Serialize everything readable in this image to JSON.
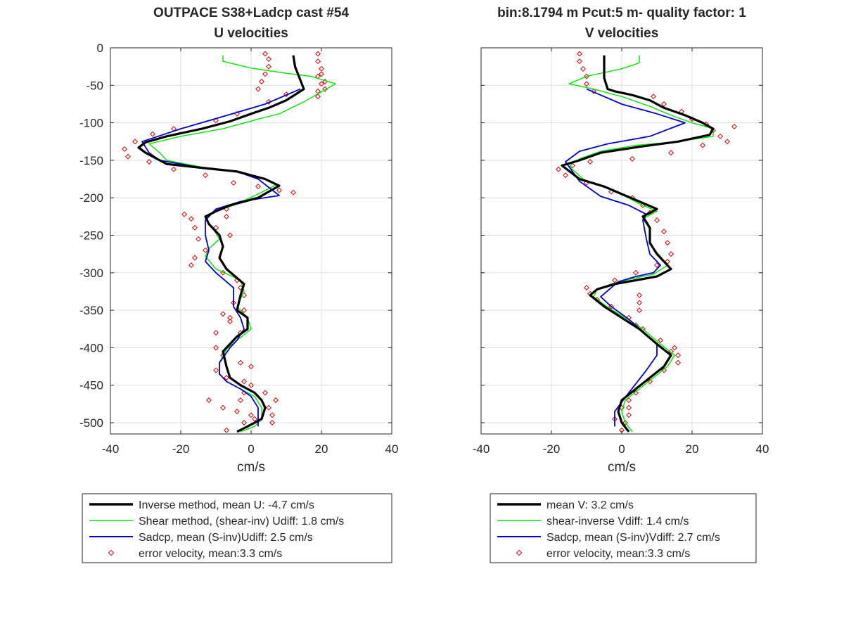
{
  "figure": {
    "panels": [
      {
        "title_line1": "OUTPACE S38+Ladcp cast #54",
        "title_line2": "U velocities",
        "xlabel": "cm/s",
        "legend": [
          {
            "label": "Inverse method, mean U:  -4.7 cm/s"
          },
          {
            "label": "Shear method, (shear-inv)  Udiff:  1.8 cm/s"
          },
          {
            "label": "Sadcp, mean (S-inv)Udiff: 2.5 cm/s"
          },
          {
            "label": "error velocity, mean:3.3 cm/s"
          }
        ]
      },
      {
        "title_line1": "bin:8.1794 m  Pcut:5 m- quality factor:  1",
        "title_line2": "V velocities",
        "xlabel": "cm/s",
        "legend": [
          {
            "label": "mean V:  3.2 cm/s"
          },
          {
            "label": "shear-inverse Vdiff:  1.4 cm/s"
          },
          {
            "label": "Sadcp, mean (S-inv)Vdiff: 2.7 cm/s"
          },
          {
            "label": "error velocity, mean:3.3 cm/s"
          }
        ]
      }
    ]
  },
  "chart_data": [
    {
      "type": "line",
      "title": "OUTPACE S38+Ladcp cast #54",
      "subtitle": "U velocities",
      "xlabel": "cm/s",
      "ylabel": "",
      "xlim": [
        -40,
        40
      ],
      "ylim": [
        -515,
        0
      ],
      "xticks": [
        "-40",
        "-20",
        "0",
        "20",
        "40"
      ],
      "yticks": [
        "0",
        "-50",
        "-100",
        "-150",
        "-200",
        "-250",
        "-300",
        "-350",
        "-400",
        "-450",
        "-500"
      ],
      "grid": true,
      "legend_position": "below",
      "colors": {
        "inverse": "#000000",
        "shear": "#00e600",
        "sadcp": "#0000cc",
        "error": "#dd0000"
      },
      "series": [
        {
          "name": "Inverse method, mean U:  -4.7 cm/s",
          "style": "line",
          "color": "#000000",
          "x": [
            12,
            12.5,
            15,
            10,
            5,
            0,
            -6,
            -14,
            -24,
            -30,
            -32,
            -30,
            -26,
            -24,
            -14,
            -4,
            4,
            8,
            2,
            -6,
            -10,
            -13,
            -12,
            -9,
            -8,
            -9,
            -7,
            -2,
            -3,
            -4,
            -1,
            -1,
            -4,
            -6,
            -8,
            -7,
            -6,
            -3,
            1,
            3,
            4,
            3,
            -1,
            -4
          ],
          "y": [
            -10,
            -25,
            -55,
            -70,
            -80,
            -88,
            -98,
            -108,
            -118,
            -126,
            -133,
            -140,
            -150,
            -155,
            -160,
            -165,
            -175,
            -184,
            -200,
            -210,
            -218,
            -225,
            -235,
            -250,
            -265,
            -280,
            -295,
            -315,
            -330,
            -350,
            -360,
            -375,
            -385,
            -395,
            -405,
            -425,
            -440,
            -450,
            -460,
            -470,
            -480,
            -495,
            -505,
            -512
          ]
        },
        {
          "name": "Shear method, (shear-inv)  Udiff:  1.8 cm/s",
          "style": "line",
          "color": "#00e600",
          "x": [
            -8,
            -8,
            0,
            10,
            17,
            24,
            15,
            8,
            2,
            -8,
            -20,
            -29,
            -26,
            -24,
            -13,
            -3,
            4,
            7,
            2,
            -5,
            -11,
            -13,
            -11,
            -9,
            -12,
            -13,
            -10,
            -3,
            -2,
            -4,
            -1,
            0,
            -4,
            -7,
            -9,
            -9,
            -7,
            -3,
            1,
            3,
            3,
            1,
            -3
          ],
          "y": [
            -10,
            -18,
            -27,
            -34,
            -38,
            -48,
            -72,
            -88,
            -95,
            -108,
            -118,
            -128,
            -140,
            -150,
            -160,
            -165,
            -175,
            -183,
            -195,
            -210,
            -220,
            -228,
            -240,
            -255,
            -268,
            -278,
            -295,
            -310,
            -325,
            -345,
            -360,
            -375,
            -390,
            -402,
            -420,
            -435,
            -445,
            -455,
            -465,
            -480,
            -495,
            -505,
            -512
          ]
        },
        {
          "name": "Sadcp, mean (S-inv)Udiff: 2.5 cm/s",
          "style": "line",
          "color": "#0000cc",
          "x": [
            14,
            4,
            -9,
            -20,
            -31,
            -29,
            -26,
            -14,
            -4,
            2,
            8,
            -3,
            -10,
            -13,
            -13,
            -12,
            -13,
            -10,
            -5,
            -5,
            -3,
            -2,
            -4,
            -6,
            -9,
            -9,
            -7,
            -3,
            0,
            2,
            2
          ],
          "y": [
            -55,
            -75,
            -93,
            -108,
            -125,
            -140,
            -150,
            -160,
            -165,
            -175,
            -197,
            -205,
            -215,
            -230,
            -250,
            -270,
            -285,
            -300,
            -320,
            -345,
            -360,
            -375,
            -390,
            -400,
            -420,
            -435,
            -445,
            -455,
            -465,
            -480,
            -505
          ]
        },
        {
          "name": "error velocity, mean:3.3 cm/s",
          "style": "markers",
          "color": "#dd0000",
          "x": [
            4,
            5,
            5,
            4,
            3,
            2,
            10,
            5,
            -4,
            -10,
            -22,
            -28,
            -33,
            -36,
            -35,
            -29,
            -22,
            -13,
            -5,
            2,
            8,
            12,
            -7,
            -19,
            -17,
            -16,
            -15,
            -10,
            -7,
            -6,
            -13,
            -16,
            -17,
            -8,
            -4,
            -3,
            -2,
            -2,
            -8,
            -6,
            -10,
            -3,
            -10,
            -8,
            -3,
            0,
            -10,
            -7,
            -2,
            0,
            -2,
            -3,
            -12,
            -8,
            -4,
            0,
            1,
            -2,
            -7,
            7,
            5,
            6,
            6,
            4,
            -5,
            -6,
            19,
            19,
            20,
            19,
            20,
            19,
            19,
            21,
            21,
            20
          ],
          "y": [
            -8,
            -15,
            -25,
            -35,
            -45,
            -55,
            -62,
            -72,
            -88,
            -97,
            -108,
            -115,
            -125,
            -135,
            -145,
            -152,
            -162,
            -170,
            -180,
            -185,
            -190,
            -193,
            -215,
            -222,
            -228,
            -240,
            -255,
            -240,
            -225,
            -250,
            -270,
            -280,
            -290,
            -300,
            -310,
            -320,
            -330,
            -350,
            -355,
            -365,
            -380,
            -380,
            -400,
            -410,
            -420,
            -425,
            -430,
            -440,
            -445,
            -450,
            -460,
            -470,
            -470,
            -480,
            -485,
            -490,
            -495,
            -500,
            -510,
            -470,
            -480,
            -490,
            -500,
            -460,
            -340,
            -360,
            -8,
            -18,
            -28,
            -38,
            -48,
            -58,
            -65,
            -55,
            -45,
            -35
          ]
        }
      ]
    },
    {
      "type": "line",
      "title": "bin:8.1794 m  Pcut:5 m- quality factor:  1",
      "subtitle": "V velocities",
      "xlabel": "cm/s",
      "ylabel": "",
      "xlim": [
        -40,
        40
      ],
      "ylim": [
        -515,
        0
      ],
      "xticks": [
        "-40",
        "-20",
        "0",
        "20",
        "40"
      ],
      "yticks": [],
      "grid": true,
      "legend_position": "below",
      "colors": {
        "inverse": "#000000",
        "shear": "#00e600",
        "sadcp": "#0000cc",
        "error": "#dd0000"
      },
      "series": [
        {
          "name": "mean V:  3.2 cm/s",
          "style": "line",
          "color": "#000000",
          "x": [
            -5,
            -5,
            -5,
            -4,
            -2,
            3,
            8,
            12,
            18,
            23,
            26,
            25,
            16,
            5,
            -6,
            -12,
            -17,
            -12,
            -5,
            0,
            5,
            10,
            6,
            8,
            8,
            10,
            14,
            10,
            4,
            -2,
            -7,
            -9,
            -5,
            0,
            5,
            10,
            14,
            12,
            8,
            4,
            0,
            -1,
            0,
            2
          ],
          "y": [
            -10,
            -25,
            -40,
            -55,
            -58,
            -63,
            -70,
            -80,
            -90,
            -100,
            -108,
            -116,
            -125,
            -132,
            -140,
            -150,
            -157,
            -175,
            -185,
            -195,
            -205,
            -215,
            -225,
            -240,
            -260,
            -275,
            -295,
            -305,
            -310,
            -315,
            -322,
            -330,
            -345,
            -360,
            -375,
            -395,
            -410,
            -425,
            -440,
            -455,
            -470,
            -485,
            -500,
            -512
          ]
        },
        {
          "name": "shear-inverse Vdiff:  1.4 cm/s",
          "style": "line",
          "color": "#00e600",
          "x": [
            5,
            5,
            0,
            -10,
            -15,
            -8,
            0,
            8,
            14,
            20,
            26,
            26,
            16,
            4,
            -6,
            -12,
            -15,
            -11,
            -4,
            1,
            5,
            10,
            6,
            8,
            8,
            11,
            13,
            9,
            3,
            -3,
            -7,
            -8,
            -4,
            1,
            6,
            11,
            15,
            13,
            9,
            5,
            1,
            0,
            1,
            3
          ],
          "y": [
            -10,
            -20,
            -28,
            -38,
            -48,
            -55,
            -65,
            -78,
            -90,
            -100,
            -108,
            -118,
            -125,
            -130,
            -138,
            -148,
            -158,
            -175,
            -188,
            -198,
            -208,
            -218,
            -228,
            -242,
            -262,
            -278,
            -290,
            -302,
            -308,
            -315,
            -322,
            -332,
            -346,
            -360,
            -375,
            -395,
            -410,
            -425,
            -440,
            -455,
            -470,
            -485,
            -500,
            -512
          ]
        },
        {
          "name": "Sadcp, mean (S-inv)Vdiff: 2.7 cm/s",
          "style": "line",
          "color": "#0000cc",
          "x": [
            -10,
            0,
            10,
            18,
            8,
            -4,
            -12,
            -16,
            -12,
            -6,
            2,
            7,
            6,
            7,
            8,
            11,
            9,
            4,
            -1,
            -6,
            -3,
            2,
            6,
            10,
            10,
            7,
            2,
            -2,
            -2
          ],
          "y": [
            -55,
            -75,
            -88,
            -100,
            -118,
            -128,
            -138,
            -152,
            -178,
            -198,
            -210,
            -222,
            -230,
            -255,
            -275,
            -290,
            -300,
            -305,
            -312,
            -332,
            -345,
            -362,
            -378,
            -395,
            -410,
            -430,
            -460,
            -485,
            -505
          ]
        },
        {
          "name": "error velocity, mean:3.3 cm/s",
          "style": "markers",
          "color": "#dd0000",
          "x": [
            -12,
            -12,
            -11,
            -10,
            -10,
            -8,
            9,
            12,
            17,
            20,
            24,
            26,
            28,
            30,
            32,
            23,
            14,
            3,
            -9,
            -14,
            -18,
            -16,
            -10,
            -3,
            3,
            6,
            8,
            10,
            12,
            13,
            14,
            13,
            10,
            4,
            -2,
            -10,
            -9,
            -7,
            -3,
            2,
            6,
            11,
            14,
            16,
            16,
            15,
            12,
            8,
            4,
            2,
            0,
            -2,
            5,
            5,
            5,
            4,
            2,
            2,
            1,
            0
          ],
          "y": [
            -8,
            -18,
            -28,
            -38,
            -48,
            -58,
            -65,
            -75,
            -85,
            -95,
            -102,
            -110,
            -118,
            -125,
            -105,
            -130,
            -140,
            -148,
            -152,
            -157,
            -162,
            -170,
            -180,
            -192,
            -200,
            -210,
            -220,
            -230,
            -245,
            -260,
            -275,
            -285,
            -290,
            -300,
            -310,
            -320,
            -328,
            -336,
            -345,
            -360,
            -375,
            -390,
            -405,
            -420,
            -410,
            -400,
            -430,
            -445,
            -460,
            -470,
            -480,
            -495,
            -330,
            -340,
            -350,
            -370,
            -480,
            -490,
            -500,
            -510
          ]
        }
      ]
    }
  ]
}
